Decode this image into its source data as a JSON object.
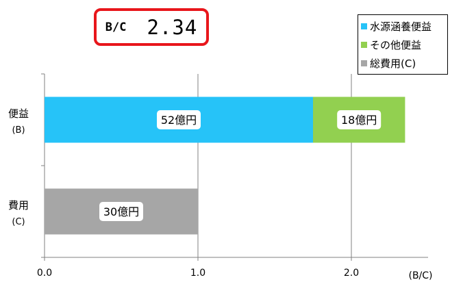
{
  "bc_indicator": {
    "label": "B/C",
    "value": "2.34"
  },
  "colors": {
    "water_source": "#26c3f8",
    "other_benefit": "#92d050",
    "total_cost": "#a6a6a6",
    "axis": "#808080",
    "grid": "#808080"
  },
  "chart_data": {
    "type": "bar",
    "orientation": "horizontal",
    "stacked": true,
    "categories": [
      {
        "name": "便益",
        "code": "(B)"
      },
      {
        "name": "費用",
        "code": "(C)"
      }
    ],
    "series": [
      {
        "name": "水源涵養便益",
        "color": "#26c3f8",
        "values": [
          1.75,
          0
        ],
        "labels": [
          "52億円",
          ""
        ]
      },
      {
        "name": "その他便益",
        "color": "#92d050",
        "values": [
          0.6,
          0
        ],
        "labels": [
          "18億円",
          ""
        ]
      },
      {
        "name": "総費用(C)",
        "color": "#a6a6a6",
        "values": [
          0,
          1.0
        ],
        "labels": [
          "",
          "30億円"
        ]
      }
    ],
    "xlim": [
      0,
      2.5
    ],
    "xticks": [
      0,
      1,
      2
    ],
    "xtick_labels": [
      "0.0",
      "1.0",
      "2.0"
    ],
    "xlabel": "(B/C)",
    "grid": true,
    "legend_position": "top-right"
  }
}
